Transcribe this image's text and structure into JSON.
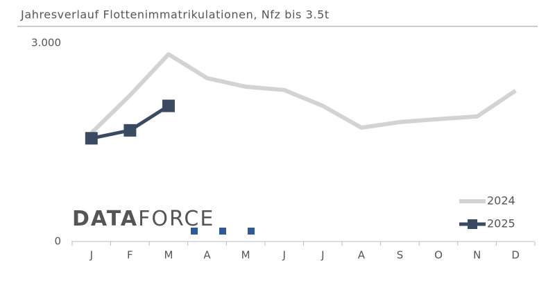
{
  "chart_data": {
    "type": "line",
    "title": "Jahresverlauf Flottenimmatrikulationen, Nfz bis 3.5t",
    "categories": [
      "J",
      "F",
      "M",
      "A",
      "M",
      "J",
      "J",
      "A",
      "S",
      "O",
      "N",
      "D"
    ],
    "series": [
      {
        "name": "2024",
        "color": "#d3d3d3",
        "values": [
          1640,
          2210,
          2830,
          2470,
          2340,
          2290,
          2050,
          1720,
          1805,
          1850,
          1890,
          2280
        ]
      },
      {
        "name": "2025",
        "color": "#3b4a63",
        "values": [
          1560,
          1680,
          2050,
          null,
          null,
          null,
          null,
          null,
          null,
          null,
          null,
          null
        ]
      }
    ],
    "ylim": [
      0,
      3000
    ],
    "yticks": [
      0,
      {
        "value": 3000,
        "label": "3.000"
      }
    ],
    "legend": "lower right",
    "logo": [
      "DATA",
      "FORCE"
    ]
  }
}
